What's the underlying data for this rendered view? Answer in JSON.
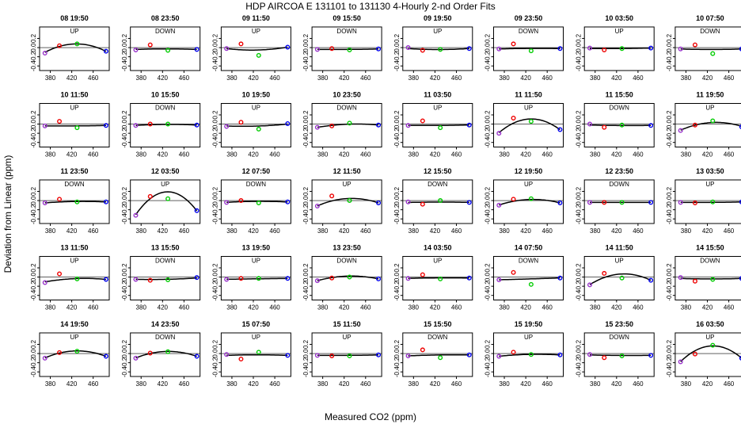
{
  "chart_data": {
    "type": "scatter",
    "title": "HDP   AIRCOA E   131101 to 131130   4-Hourly 2-nd Order Fits",
    "xlabel": "Measured CO2 (ppm)",
    "ylabel": "Deviation from Linear (ppm)",
    "xlim": [
      360,
      490
    ],
    "ylim": [
      -0.5,
      0.45
    ],
    "xticks": [
      380,
      420,
      460
    ],
    "yticks": [
      -0.4,
      -0.2,
      0.0,
      0.2
    ],
    "grid": false,
    "point_colors": [
      "#9933cc",
      "#ee0000",
      "#00cc00",
      "#0000ee"
    ],
    "x_standards": [
      370,
      397,
      430,
      484
    ],
    "panels": [
      {
        "label": "08 19:50",
        "dir": "UP",
        "y": [
          -0.12,
          0.04,
          0.08,
          -0.08
        ],
        "fit": [
          -0.11,
          0.04,
          0.07,
          -0.08
        ]
      },
      {
        "label": "08 23:50",
        "dir": "DOWN",
        "y": [
          -0.05,
          0.06,
          -0.06,
          -0.04
        ],
        "fit": [
          -0.04,
          -0.03,
          -0.03,
          -0.04
        ]
      },
      {
        "label": "09 11:50",
        "dir": "UP",
        "y": [
          -0.02,
          0.08,
          -0.17,
          0.01
        ],
        "fit": [
          -0.02,
          -0.05,
          -0.05,
          0.01
        ]
      },
      {
        "label": "09 15:50",
        "dir": "DOWN",
        "y": [
          -0.04,
          -0.02,
          -0.05,
          -0.03
        ],
        "fit": [
          -0.04,
          -0.04,
          -0.04,
          -0.03
        ]
      },
      {
        "label": "09 19:50",
        "dir": "UP",
        "y": [
          0.0,
          -0.06,
          -0.04,
          -0.02
        ],
        "fit": [
          -0.02,
          -0.04,
          -0.04,
          -0.02
        ]
      },
      {
        "label": "09 23:50",
        "dir": "DOWN",
        "y": [
          -0.03,
          0.08,
          -0.07,
          -0.02
        ],
        "fit": [
          -0.03,
          -0.02,
          -0.02,
          -0.02
        ]
      },
      {
        "label": "10 03:50",
        "dir": "UP",
        "y": [
          -0.01,
          -0.05,
          -0.02,
          -0.01
        ],
        "fit": [
          -0.02,
          -0.02,
          -0.02,
          -0.01
        ]
      },
      {
        "label": "10 07:50",
        "dir": "DOWN",
        "y": [
          -0.03,
          0.06,
          -0.13,
          -0.03
        ],
        "fit": [
          -0.03,
          -0.04,
          -0.04,
          -0.03
        ]
      },
      {
        "label": "10 11:50",
        "dir": "UP",
        "y": [
          -0.04,
          0.06,
          -0.08,
          -0.03
        ],
        "fit": [
          -0.04,
          -0.04,
          -0.04,
          -0.03
        ]
      },
      {
        "label": "10 15:50",
        "dir": "DOWN",
        "y": [
          -0.03,
          0.0,
          0.0,
          -0.02
        ],
        "fit": [
          -0.03,
          -0.01,
          -0.01,
          -0.02
        ]
      },
      {
        "label": "10 19:50",
        "dir": "UP",
        "y": [
          -0.05,
          0.04,
          -0.11,
          0.01
        ],
        "fit": [
          -0.04,
          -0.05,
          -0.04,
          0.0
        ]
      },
      {
        "label": "10 23:50",
        "dir": "DOWN",
        "y": [
          -0.07,
          -0.04,
          0.02,
          -0.02
        ],
        "fit": [
          -0.07,
          -0.03,
          0.0,
          -0.02
        ]
      },
      {
        "label": "11 03:50",
        "dir": "UP",
        "y": [
          -0.03,
          0.07,
          -0.08,
          -0.02
        ],
        "fit": [
          -0.03,
          -0.03,
          -0.03,
          -0.02
        ]
      },
      {
        "label": "11 11:50",
        "dir": "UP",
        "y": [
          -0.2,
          0.13,
          0.06,
          -0.12
        ],
        "fit": [
          -0.2,
          0.05,
          0.09,
          -0.12
        ]
      },
      {
        "label": "11 15:50",
        "dir": "DOWN",
        "y": [
          0.0,
          -0.07,
          -0.02,
          -0.03
        ],
        "fit": [
          -0.02,
          -0.03,
          -0.03,
          -0.03
        ]
      },
      {
        "label": "11 19:50",
        "dir": "UP",
        "y": [
          -0.14,
          -0.02,
          0.07,
          -0.06
        ],
        "fit": [
          -0.13,
          -0.03,
          0.04,
          -0.05
        ]
      },
      {
        "label": "11 23:50",
        "dir": "DOWN",
        "y": [
          -0.05,
          0.03,
          -0.03,
          -0.03
        ],
        "fit": [
          -0.05,
          -0.03,
          -0.02,
          -0.03
        ]
      },
      {
        "label": "12 03:50",
        "dir": "UP",
        "y": [
          -0.32,
          0.09,
          0.04,
          -0.22
        ],
        "fit": [
          -0.32,
          0.07,
          0.17,
          -0.22
        ]
      },
      {
        "label": "12 07:50",
        "dir": "DOWN",
        "y": [
          -0.04,
          0.0,
          -0.05,
          -0.03
        ],
        "fit": [
          -0.04,
          -0.02,
          -0.02,
          -0.03
        ]
      },
      {
        "label": "12 11:50",
        "dir": "UP",
        "y": [
          -0.12,
          0.1,
          0.0,
          -0.05
        ],
        "fit": [
          -0.12,
          0.0,
          0.04,
          -0.05
        ]
      },
      {
        "label": "12 15:50",
        "dir": "DOWN",
        "y": [
          -0.03,
          -0.08,
          0.0,
          -0.04
        ],
        "fit": [
          -0.04,
          -0.04,
          -0.03,
          -0.04
        ]
      },
      {
        "label": "12 19:50",
        "dir": "UP",
        "y": [
          -0.1,
          0.03,
          0.04,
          -0.05
        ],
        "fit": [
          -0.1,
          -0.01,
          0.02,
          -0.05
        ]
      },
      {
        "label": "12 23:50",
        "dir": "DOWN",
        "y": [
          -0.04,
          -0.04,
          -0.04,
          -0.04
        ],
        "fit": [
          -0.04,
          -0.04,
          -0.04,
          -0.04
        ]
      },
      {
        "label": "13 03:50",
        "dir": "UP",
        "y": [
          -0.04,
          -0.05,
          -0.03,
          -0.03
        ],
        "fit": [
          -0.04,
          -0.04,
          -0.04,
          -0.03
        ]
      },
      {
        "label": "13 11:50",
        "dir": "UP",
        "y": [
          -0.12,
          0.07,
          -0.04,
          -0.05
        ],
        "fit": [
          -0.11,
          -0.05,
          -0.04,
          -0.05
        ]
      },
      {
        "label": "13 15:50",
        "dir": "DOWN",
        "y": [
          -0.05,
          -0.07,
          -0.06,
          -0.01
        ],
        "fit": [
          -0.05,
          -0.05,
          -0.05,
          -0.02
        ]
      },
      {
        "label": "13 19:50",
        "dir": "UP",
        "y": [
          -0.05,
          -0.03,
          -0.03,
          -0.03
        ],
        "fit": [
          -0.05,
          -0.04,
          -0.04,
          -0.03
        ]
      },
      {
        "label": "13 23:50",
        "dir": "DOWN",
        "y": [
          -0.08,
          -0.02,
          0.0,
          -0.04
        ],
        "fit": [
          -0.08,
          -0.01,
          0.02,
          -0.04
        ]
      },
      {
        "label": "14 03:50",
        "dir": "UP",
        "y": [
          -0.03,
          0.05,
          -0.04,
          -0.02
        ],
        "fit": [
          -0.03,
          -0.02,
          -0.02,
          -0.02
        ]
      },
      {
        "label": "14 07:50",
        "dir": "DOWN",
        "y": [
          -0.06,
          0.1,
          -0.16,
          -0.02
        ],
        "fit": [
          -0.06,
          -0.05,
          -0.04,
          -0.02
        ]
      },
      {
        "label": "14 11:50",
        "dir": "UP",
        "y": [
          -0.17,
          0.08,
          -0.02,
          -0.07
        ],
        "fit": [
          -0.17,
          0.0,
          0.06,
          -0.07
        ]
      },
      {
        "label": "14 15:50",
        "dir": "DOWN",
        "y": [
          -0.01,
          -0.09,
          -0.05,
          -0.03
        ],
        "fit": [
          -0.03,
          -0.04,
          -0.04,
          -0.03
        ]
      },
      {
        "label": "14 19:50",
        "dir": "UP",
        "y": [
          -0.1,
          0.02,
          0.05,
          -0.06
        ],
        "fit": [
          -0.1,
          0.02,
          0.05,
          -0.06
        ]
      },
      {
        "label": "14 23:50",
        "dir": "DOWN",
        "y": [
          -0.1,
          0.01,
          0.04,
          -0.06
        ],
        "fit": [
          -0.1,
          0.01,
          0.04,
          -0.06
        ]
      },
      {
        "label": "15 07:50",
        "dir": "UP",
        "y": [
          -0.02,
          -0.12,
          0.03,
          -0.04
        ],
        "fit": [
          -0.04,
          -0.03,
          -0.03,
          -0.04
        ]
      },
      {
        "label": "15 11:50",
        "dir": "UP",
        "y": [
          -0.04,
          -0.05,
          -0.05,
          -0.03
        ],
        "fit": [
          -0.04,
          -0.04,
          -0.04,
          -0.03
        ]
      },
      {
        "label": "15 15:50",
        "dir": "DOWN",
        "y": [
          -0.05,
          0.08,
          -0.09,
          -0.03
        ],
        "fit": [
          -0.05,
          -0.04,
          -0.03,
          -0.03
        ]
      },
      {
        "label": "15 19:50",
        "dir": "UP",
        "y": [
          -0.06,
          0.03,
          -0.02,
          -0.03
        ],
        "fit": [
          -0.06,
          -0.03,
          -0.02,
          -0.03
        ]
      },
      {
        "label": "15 23:50",
        "dir": "DOWN",
        "y": [
          -0.02,
          -0.09,
          -0.05,
          -0.04
        ],
        "fit": [
          -0.03,
          -0.04,
          -0.04,
          -0.04
        ]
      },
      {
        "label": "16 03:50",
        "dir": "UP",
        "y": [
          -0.18,
          -0.01,
          0.18,
          -0.1
        ],
        "fit": [
          -0.18,
          0.07,
          0.16,
          -0.1
        ]
      }
    ]
  }
}
